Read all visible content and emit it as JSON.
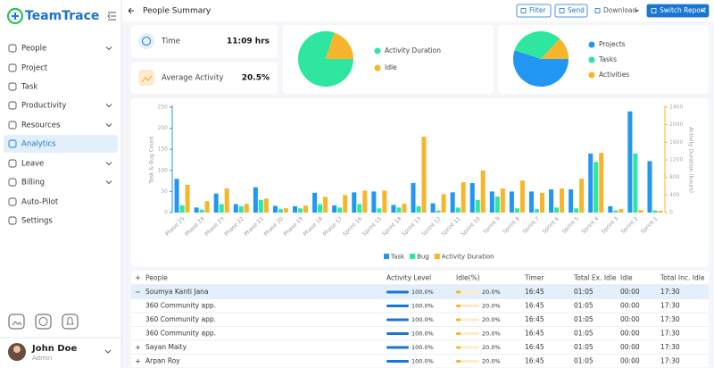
{
  "sidebar": {
    "logo": "TeamTrace",
    "menu": [
      {
        "label": "People",
        "submenu": true
      },
      {
        "label": "Project",
        "submenu": false
      },
      {
        "label": "Task",
        "submenu": false
      },
      {
        "label": "Productivity",
        "submenu": true
      },
      {
        "label": "Resources",
        "submenu": true
      },
      {
        "label": "Analytics",
        "submenu": false,
        "active": true
      },
      {
        "label": "Leave",
        "submenu": true
      },
      {
        "label": "Billing",
        "submenu": true
      },
      {
        "label": "Auto-Pilot",
        "submenu": false
      },
      {
        "label": "Settings",
        "submenu": false
      }
    ],
    "user": {
      "name": "John Doe",
      "role": "Admin"
    }
  },
  "header": {
    "title": "People Summary",
    "buttons": [
      "Filter",
      "Send",
      "Download",
      "Switch Report"
    ]
  },
  "stats": [
    {
      "label": "Time",
      "value": "11:09 hrs"
    },
    {
      "label": "Average Activity",
      "value": "20.5%"
    }
  ],
  "chart_data": [
    {
      "type": "pie",
      "categories": [
        "Activity Duration",
        "Idle"
      ],
      "values": [
        80,
        20
      ],
      "colors": [
        "#2ee6a0",
        "#f7b52c"
      ]
    },
    {
      "type": "pie",
      "categories": [
        "Projects",
        "Tasks",
        "Activities"
      ],
      "values": [
        55,
        32,
        13
      ],
      "colors": [
        "#2196f3",
        "#2ee6a0",
        "#f7b52c"
      ]
    },
    {
      "type": "bar",
      "categories": [
        "Phase 25",
        "Phase 24",
        "Phase 23",
        "Phase 22",
        "Phase 21",
        "Phase 20",
        "Phase 19",
        "Phase 18",
        "Phase 17",
        "Sprint 16",
        "Sprint 15",
        "Sprint 14",
        "Sprint 13",
        "Sprint 12",
        "Sprint 11",
        "Sprint 10",
        "Sprint 9",
        "Sprint 8",
        "Sprint 7",
        "Sprint 6",
        "Sprint 5",
        "Sprint 4",
        "Sprint 3",
        "Sprint 2",
        "Sprint 1"
      ],
      "series": [
        {
          "name": "Task",
          "color": "#2196f3",
          "values": [
            80,
            12,
            45,
            20,
            60,
            16,
            15,
            47,
            17,
            48,
            50,
            18,
            70,
            22,
            48,
            70,
            50,
            50,
            50,
            55,
            55,
            140,
            15,
            240,
            122
          ]
        },
        {
          "name": "Bug",
          "color": "#2ee6a0",
          "values": [
            17,
            7,
            20,
            15,
            30,
            8,
            10,
            20,
            12,
            20,
            10,
            12,
            15,
            5,
            12,
            30,
            38,
            10,
            8,
            12,
            10,
            120,
            5,
            140,
            5
          ]
        },
        {
          "name": "Activity Duration",
          "color": "#f7b52c",
          "axis": "y2",
          "values": [
            630,
            260,
            550,
            200,
            320,
            100,
            160,
            360,
            400,
            500,
            500,
            200,
            1730,
            420,
            690,
            960,
            550,
            730,
            450,
            550,
            770,
            1360,
            80,
            60,
            40
          ]
        }
      ],
      "ylim": [
        0,
        250
      ],
      "yticks": [
        0,
        50,
        100,
        150,
        200,
        250
      ],
      "y2lim": [
        0,
        2400
      ],
      "y2ticks": [
        0,
        400,
        800,
        1200,
        1600,
        2000,
        2400
      ],
      "ylabel": "Task & Bug Count",
      "y2label": "Activity Duration (hours)",
      "legend": "bottom"
    }
  ],
  "table": {
    "columns": [
      "People",
      "Activity Level",
      "Idle(%)",
      "Timer",
      "Total Ex. Idle",
      "Idle",
      "Total Inc. Idle"
    ],
    "rows": [
      {
        "name": "Soumya Kanti Jana",
        "expanded": true,
        "activity": 100,
        "activity_label": "100.0%",
        "idle_pct": 20,
        "idle_pct_label": "20.0%",
        "timer": "16:45",
        "total_ex_idle": "01:05",
        "idle": "00:00",
        "total_inc_idle": "17:30"
      },
      {
        "name": "360 Community app.",
        "activity": 100,
        "activity_label": "100.0%",
        "idle_pct": 20,
        "idle_pct_label": "20.0%",
        "timer": "16:45",
        "total_ex_idle": "01:05",
        "idle": "00:00",
        "total_inc_idle": "17:30"
      },
      {
        "name": "360 Community app.",
        "activity": 100,
        "activity_label": "100.0%",
        "idle_pct": 20,
        "idle_pct_label": "20.0%",
        "timer": "16:45",
        "total_ex_idle": "01:05",
        "idle": "00:00",
        "total_inc_idle": "17:30"
      },
      {
        "name": "360 Community app.",
        "activity": 100,
        "activity_label": "100.0%",
        "idle_pct": 20,
        "idle_pct_label": "20.0%",
        "timer": "16:45",
        "total_ex_idle": "01:05",
        "idle": "00:00",
        "total_inc_idle": "17:30"
      },
      {
        "name": "Sayan Maity",
        "expanded": false,
        "activity": 100,
        "activity_label": "100.0%",
        "idle_pct": 20,
        "idle_pct_label": "20.0%",
        "timer": "16:45",
        "total_ex_idle": "01:05",
        "idle": "00:00",
        "total_inc_idle": "17:30"
      },
      {
        "name": "Arpan Roy",
        "expanded": false,
        "activity": 100,
        "activity_label": "100.0%",
        "idle_pct": 20,
        "idle_pct_label": "20.0%",
        "timer": "16:45",
        "total_ex_idle": "01:05",
        "idle": "00:00",
        "total_inc_idle": "17:30"
      }
    ]
  }
}
